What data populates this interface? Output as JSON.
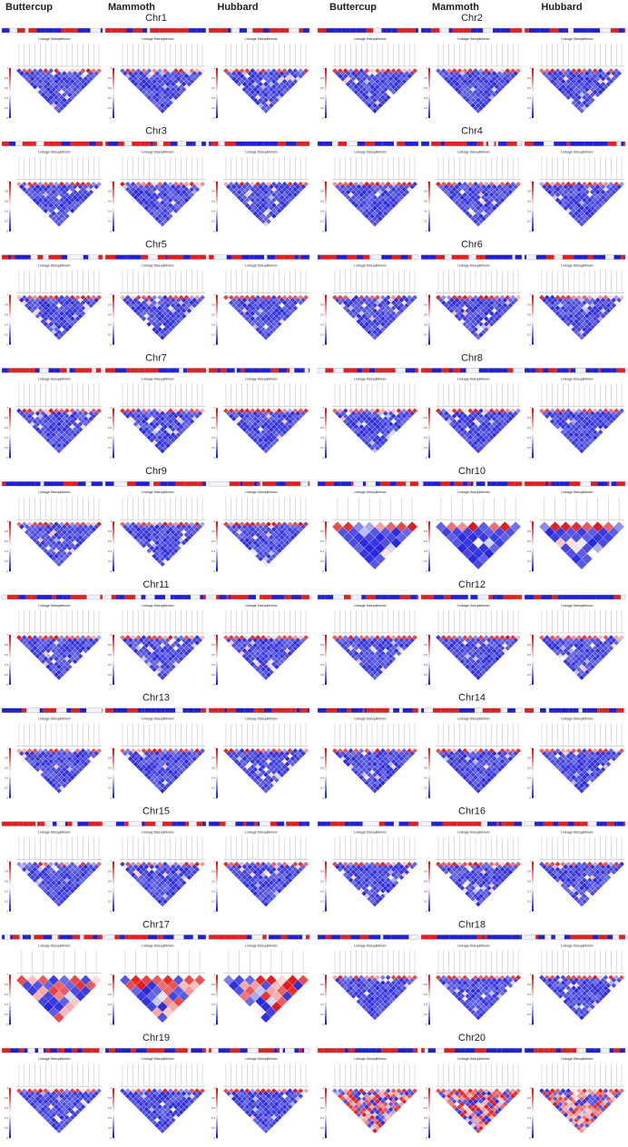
{
  "columns": [
    "Buttercup",
    "Mammoth",
    "Hubbard"
  ],
  "chromosomes": [
    "Chr1",
    "Chr2",
    "Chr3",
    "Chr4",
    "Chr5",
    "Chr6",
    "Chr7",
    "Chr8",
    "Chr9",
    "Chr10",
    "Chr11",
    "Chr12",
    "Chr13",
    "Chr14",
    "Chr15",
    "Chr16",
    "Chr17",
    "Chr18",
    "Chr19",
    "Chr20"
  ],
  "panel_title": "Linkage Disequilibrium",
  "scale_ticks": [
    1,
    0.8,
    0.6,
    0.4,
    0.2,
    0
  ]
}
